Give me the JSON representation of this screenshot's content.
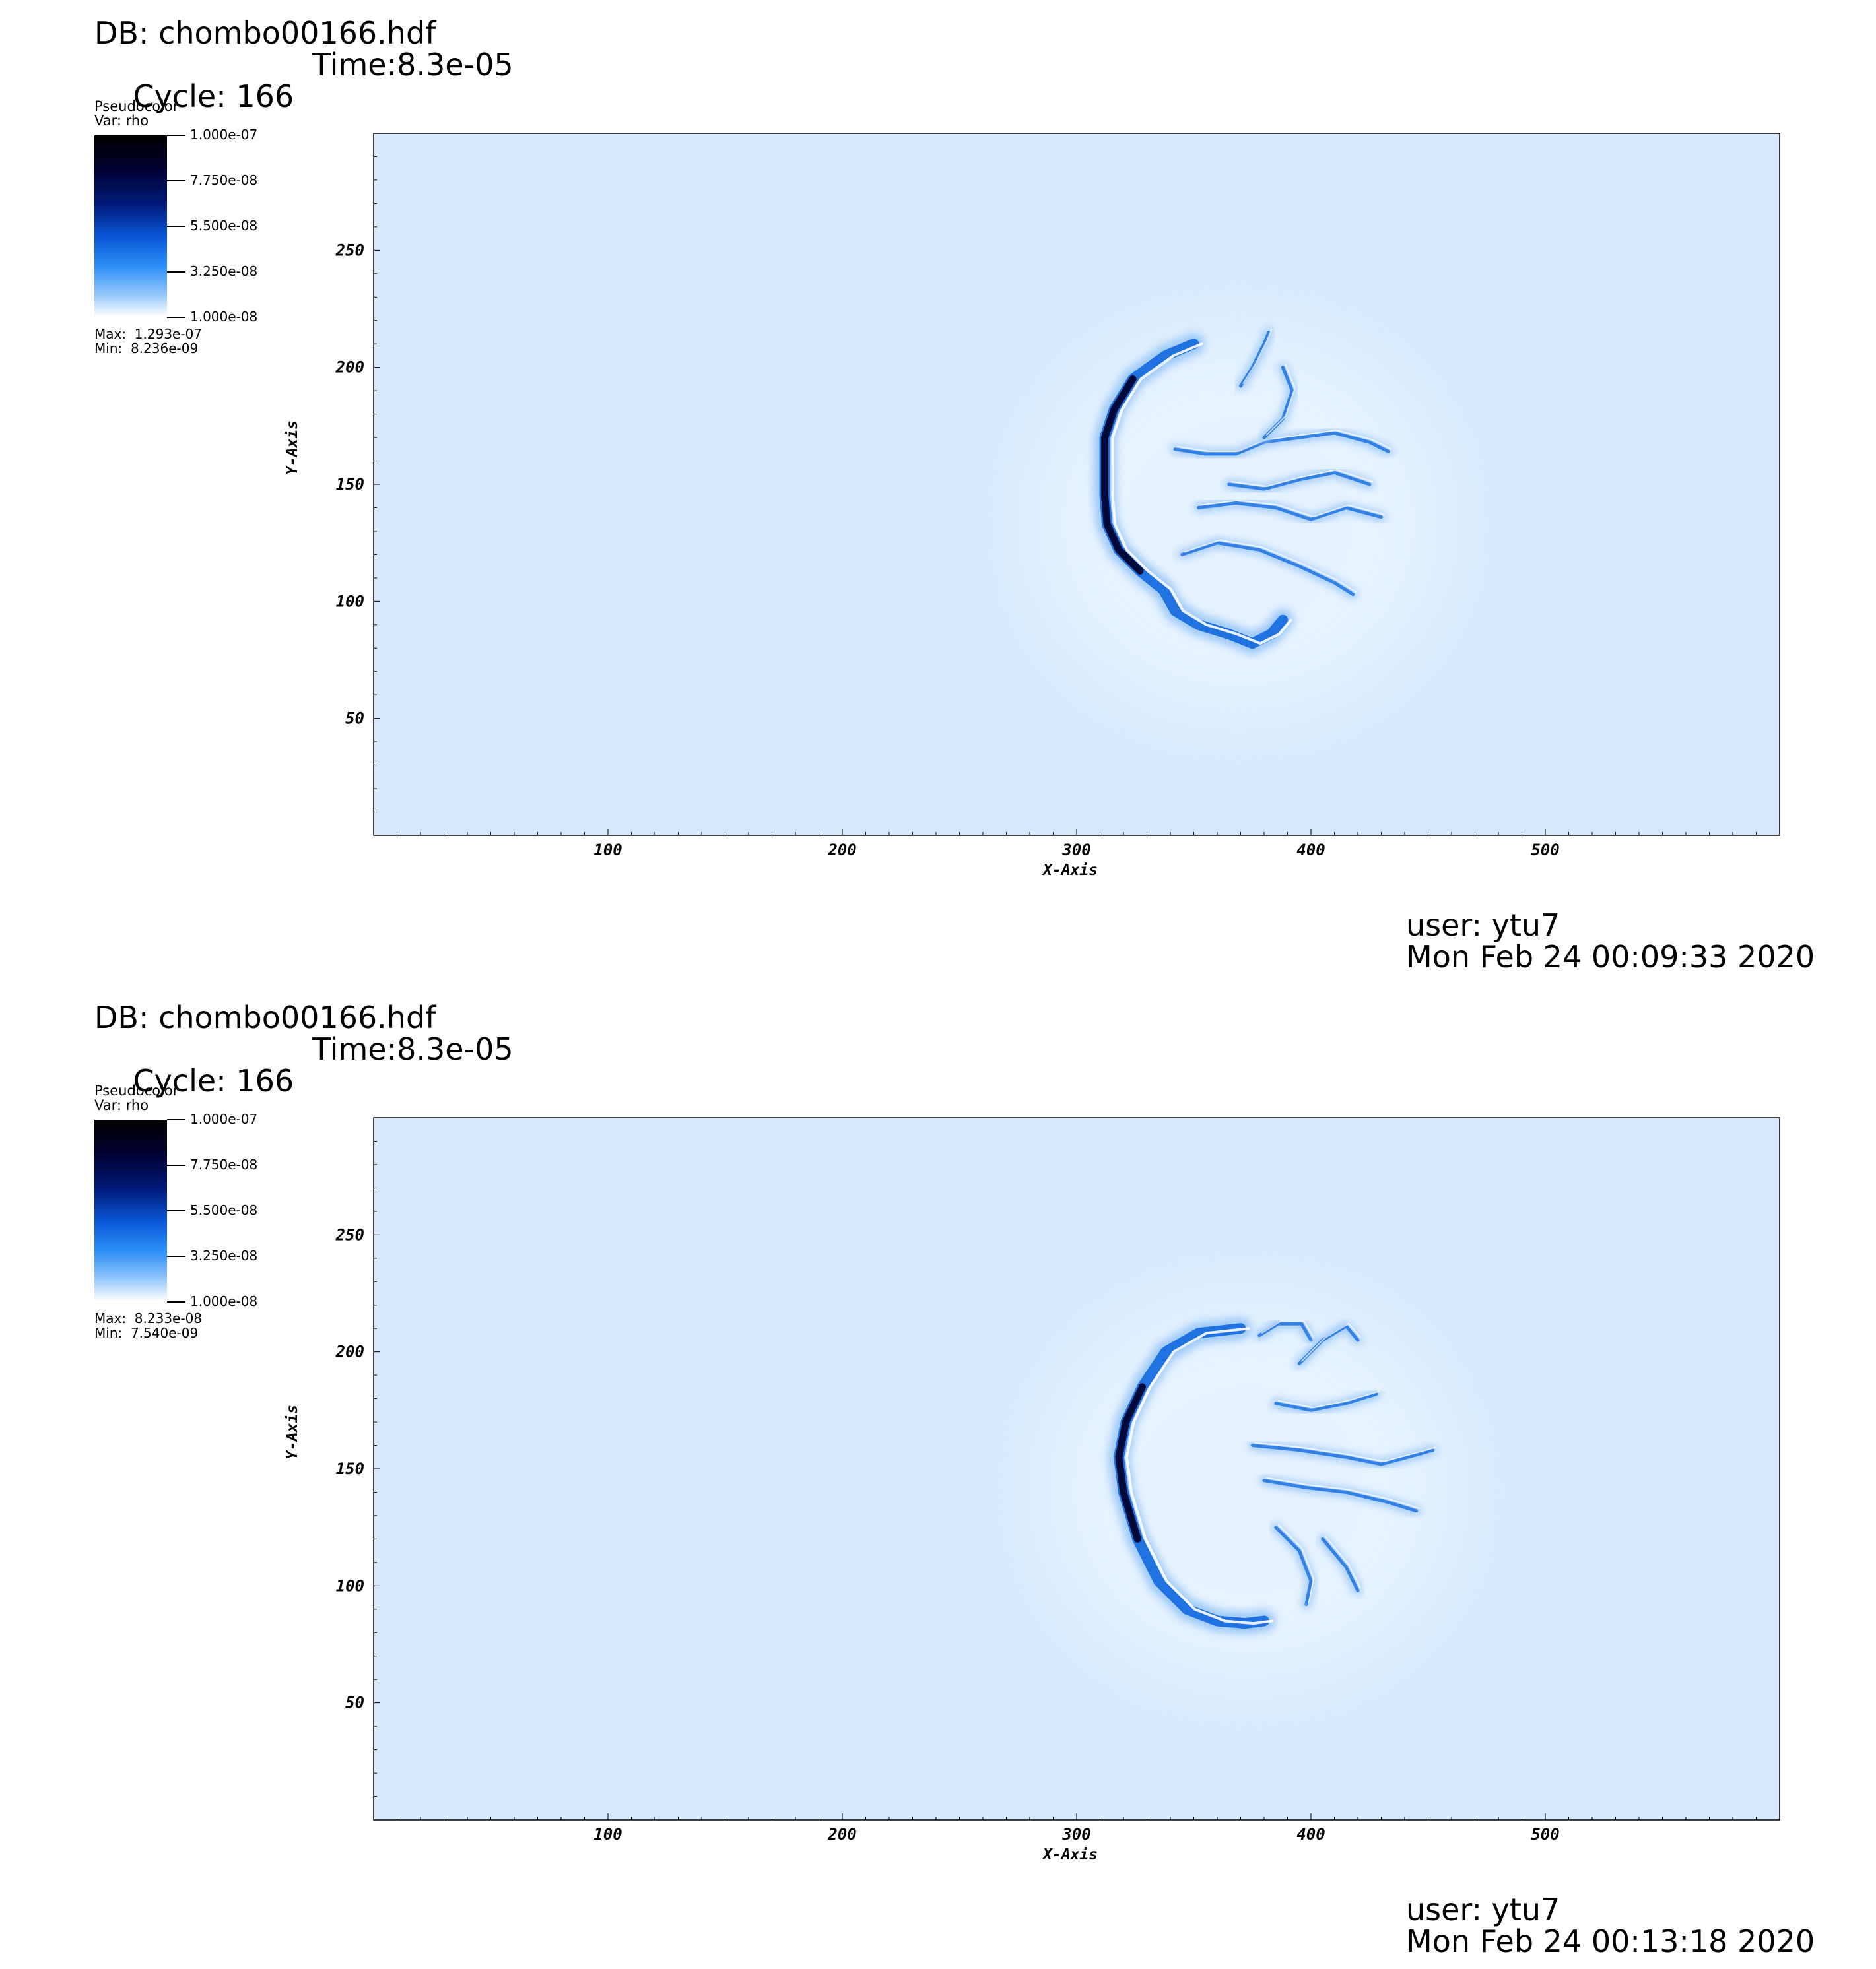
{
  "panels": [
    {
      "db": "DB: chombo00166.hdf",
      "cycle": "Cycle: 166",
      "time": "Time:8.3e-05",
      "legend": {
        "plot_type": "Pseudocolor",
        "var": "Var: rho",
        "ticks": [
          "1.000e-07",
          "7.750e-08",
          "5.500e-08",
          "3.250e-08",
          "1.000e-08"
        ],
        "max": "Max:  1.293e-07",
        "min": "Min:  8.236e-09"
      },
      "user": "user: ytu7",
      "date": "Mon Feb 24 00:09:33 2020"
    },
    {
      "db": "DB: chombo00166.hdf",
      "cycle": "Cycle: 166",
      "time": "Time:8.3e-05",
      "legend": {
        "plot_type": "Pseudocolor",
        "var": "Var: rho",
        "ticks": [
          "1.000e-07",
          "7.750e-08",
          "5.500e-08",
          "3.250e-08",
          "1.000e-08"
        ],
        "max": "Max:  8.233e-08",
        "min": "Min:  7.540e-09"
      },
      "user": "user: ytu7",
      "date": "Mon Feb 24 00:13:18 2020"
    }
  ],
  "colors": {
    "background_field": "#d6e9fd",
    "dark_shock": "#000a3a",
    "mid_blue": "#1f72e0",
    "light_blue": "#9fcaf8"
  },
  "chart_data": [
    {
      "type": "heatmap",
      "variable": "rho",
      "xlabel": "X-Axis",
      "ylabel": "Y-Axis",
      "xlim": [
        0,
        600
      ],
      "ylim": [
        0,
        300
      ],
      "x_ticks": [
        100,
        200,
        300,
        400,
        500
      ],
      "y_ticks": [
        50,
        100,
        150,
        200,
        250
      ],
      "color_range": [
        1e-08,
        1e-07
      ],
      "feature": {
        "shock": [
          [
            350,
            210
          ],
          [
            338,
            205
          ],
          [
            324,
            195
          ],
          [
            316,
            182
          ],
          [
            312,
            170
          ],
          [
            312,
            158
          ],
          [
            312,
            145
          ],
          [
            313,
            133
          ],
          [
            318,
            122
          ],
          [
            327,
            113
          ],
          [
            337,
            105
          ],
          [
            342,
            96
          ],
          [
            352,
            90
          ],
          [
            365,
            86
          ],
          [
            375,
            82
          ],
          [
            383,
            86
          ],
          [
            388,
            92
          ]
        ],
        "tendrils": [
          [
            [
              342,
              165
            ],
            [
              355,
              163
            ],
            [
              368,
              163
            ],
            [
              380,
              168
            ],
            [
              395,
              170
            ],
            [
              410,
              172
            ],
            [
              425,
              168
            ],
            [
              433,
              164
            ]
          ],
          [
            [
              370,
              192
            ],
            [
              375,
              200
            ],
            [
              380,
              210
            ],
            [
              382,
              215
            ]
          ],
          [
            [
              388,
              200
            ],
            [
              392,
              190
            ],
            [
              388,
              178
            ],
            [
              380,
              170
            ]
          ],
          [
            [
              352,
              140
            ],
            [
              368,
              142
            ],
            [
              385,
              140
            ],
            [
              400,
              135
            ],
            [
              415,
              140
            ],
            [
              430,
              136
            ]
          ],
          [
            [
              345,
              120
            ],
            [
              360,
              125
            ],
            [
              378,
              122
            ],
            [
              395,
              115
            ],
            [
              410,
              108
            ],
            [
              418,
              103
            ]
          ],
          [
            [
              365,
              150
            ],
            [
              380,
              148
            ],
            [
              395,
              152
            ],
            [
              410,
              155
            ],
            [
              425,
              150
            ]
          ]
        ]
      }
    },
    {
      "type": "heatmap",
      "variable": "rho",
      "xlabel": "X-Axis",
      "ylabel": "Y-Axis",
      "xlim": [
        0,
        600
      ],
      "ylim": [
        0,
        300
      ],
      "x_ticks": [
        100,
        200,
        300,
        400,
        500
      ],
      "y_ticks": [
        50,
        100,
        150,
        200,
        250
      ],
      "color_range": [
        1e-08,
        1e-07
      ],
      "feature": {
        "shock": [
          [
            370,
            210
          ],
          [
            352,
            208
          ],
          [
            338,
            200
          ],
          [
            328,
            185
          ],
          [
            321,
            170
          ],
          [
            318,
            155
          ],
          [
            320,
            140
          ],
          [
            326,
            120
          ],
          [
            335,
            102
          ],
          [
            347,
            90
          ],
          [
            360,
            85
          ],
          [
            372,
            84
          ],
          [
            380,
            85
          ]
        ],
        "tendrils": [
          [
            [
              375,
              160
            ],
            [
              395,
              158
            ],
            [
              415,
              155
            ],
            [
              430,
              152
            ],
            [
              445,
              156
            ],
            [
              452,
              158
            ]
          ],
          [
            [
              380,
              145
            ],
            [
              398,
              142
            ],
            [
              415,
              140
            ],
            [
              432,
              136
            ],
            [
              445,
              132
            ]
          ],
          [
            [
              378,
              207
            ],
            [
              386,
              212
            ],
            [
              396,
              212
            ],
            [
              400,
              205
            ]
          ],
          [
            [
              395,
              195
            ],
            [
              405,
              205
            ],
            [
              415,
              211
            ],
            [
              420,
              205
            ]
          ],
          [
            [
              385,
              178
            ],
            [
              400,
              175
            ],
            [
              415,
              178
            ],
            [
              428,
              182
            ]
          ],
          [
            [
              385,
              125
            ],
            [
              395,
              115
            ],
            [
              400,
              102
            ],
            [
              398,
              92
            ]
          ],
          [
            [
              405,
              120
            ],
            [
              415,
              108
            ],
            [
              420,
              98
            ]
          ]
        ]
      }
    }
  ]
}
